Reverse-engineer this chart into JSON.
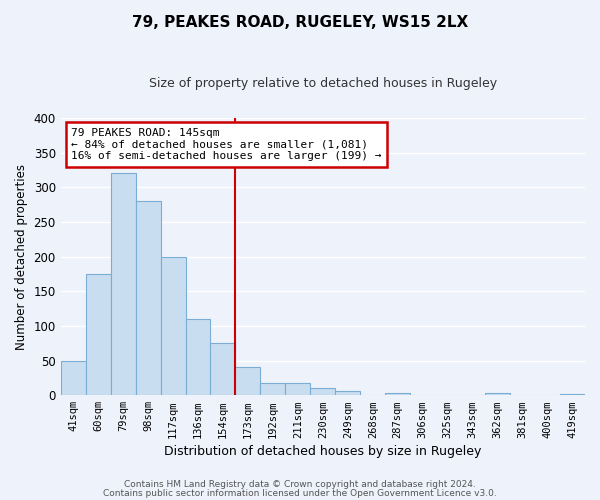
{
  "title": "79, PEAKES ROAD, RUGELEY, WS15 2LX",
  "subtitle": "Size of property relative to detached houses in Rugeley",
  "xlabel": "Distribution of detached houses by size in Rugeley",
  "ylabel": "Number of detached properties",
  "bar_labels": [
    "41sqm",
    "60sqm",
    "79sqm",
    "98sqm",
    "117sqm",
    "136sqm",
    "154sqm",
    "173sqm",
    "192sqm",
    "211sqm",
    "230sqm",
    "249sqm",
    "268sqm",
    "287sqm",
    "306sqm",
    "325sqm",
    "343sqm",
    "362sqm",
    "381sqm",
    "400sqm",
    "419sqm"
  ],
  "bar_values": [
    50,
    175,
    320,
    280,
    200,
    110,
    75,
    40,
    18,
    18,
    10,
    6,
    0,
    3,
    0,
    0,
    0,
    3,
    0,
    0,
    2
  ],
  "bar_color": "#c9ddf0",
  "bar_edge_color": "#7aadd4",
  "property_line_x": 6.5,
  "annotation_title": "79 PEAKES ROAD: 145sqm",
  "annotation_line1": "← 84% of detached houses are smaller (1,081)",
  "annotation_line2": "16% of semi-detached houses are larger (199) →",
  "annotation_box_color": "#ffffff",
  "annotation_box_edge": "#cc0000",
  "property_line_color": "#cc0000",
  "ylim": [
    0,
    400
  ],
  "yticks": [
    0,
    50,
    100,
    150,
    200,
    250,
    300,
    350,
    400
  ],
  "footer1": "Contains HM Land Registry data © Crown copyright and database right 2024.",
  "footer2": "Contains public sector information licensed under the Open Government Licence v3.0.",
  "bg_color": "#eef2fb",
  "grid_color": "#ffffff"
}
